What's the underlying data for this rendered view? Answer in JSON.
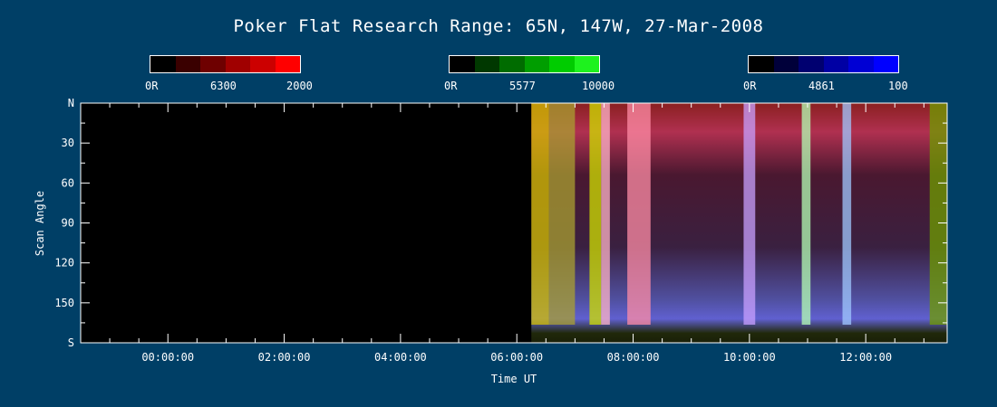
{
  "chart_data": {
    "type": "heatmap",
    "title": "Poker Flat Research Range: 65N, 147W, 27-Mar-2008",
    "xlabel": "Time UT",
    "ylabel": "Scan Angle",
    "x_range_hours": [
      -1.5,
      13.4
    ],
    "x_ticks": [
      {
        "hour": 0,
        "label": "00:00:00"
      },
      {
        "hour": 2,
        "label": "02:00:00"
      },
      {
        "hour": 4,
        "label": "04:00:00"
      },
      {
        "hour": 6,
        "label": "06:00:00"
      },
      {
        "hour": 8,
        "label": "08:00:00"
      },
      {
        "hour": 10,
        "label": "10:00:00"
      },
      {
        "hour": 12,
        "label": "12:00:00"
      }
    ],
    "y_range": [
      0,
      180
    ],
    "y_ticks": [
      {
        "value": 0,
        "label": "N"
      },
      {
        "value": 30,
        "label": "30"
      },
      {
        "value": 60,
        "label": "60"
      },
      {
        "value": 90,
        "label": "90"
      },
      {
        "value": 120,
        "label": "120"
      },
      {
        "value": 150,
        "label": "150"
      },
      {
        "value": 180,
        "label": "S"
      }
    ],
    "data_start_hour": 6.25,
    "colorbars": [
      {
        "channel": "red",
        "min_label": "0R",
        "wavelength_label": "6300",
        "max_label": "2000",
        "colors": [
          "#000000",
          "#3a0000",
          "#6e0000",
          "#a00000",
          "#cc0000",
          "#ff0000"
        ]
      },
      {
        "channel": "green",
        "min_label": "0R",
        "wavelength_label": "5577",
        "max_label": "10000",
        "colors": [
          "#000000",
          "#003800",
          "#006c00",
          "#009e00",
          "#00cc00",
          "#1ef21e"
        ]
      },
      {
        "channel": "blue",
        "min_label": "0R",
        "wavelength_label": "4861",
        "max_label": "100",
        "colors": [
          "#000000",
          "#00003a",
          "#000070",
          "#0000a4",
          "#0000d4",
          "#0000ff"
        ]
      }
    ],
    "bright_bands": [
      {
        "hour_start": 6.25,
        "hour_end": 6.55,
        "color": "#d4c000"
      },
      {
        "hour_start": 6.55,
        "hour_end": 7.0,
        "color": "#a9a030"
      },
      {
        "hour_start": 7.25,
        "hour_end": 7.45,
        "color": "#d0e000"
      },
      {
        "hour_start": 7.45,
        "hour_end": 7.6,
        "color": "#ffb4c8"
      },
      {
        "hour_start": 7.9,
        "hour_end": 8.3,
        "color": "#ff8ca6"
      },
      {
        "hour_start": 9.9,
        "hour_end": 10.1,
        "color": "#c8a0ff"
      },
      {
        "hour_start": 10.9,
        "hour_end": 11.05,
        "color": "#b4ffb4"
      },
      {
        "hour_start": 11.6,
        "hour_end": 11.75,
        "color": "#a0c8ff"
      },
      {
        "hour_start": 13.1,
        "hour_end": 13.4,
        "color": "#6f9e00"
      }
    ],
    "colors": {
      "background": "#003f66",
      "plot_background": "#000000",
      "axis": "#ffffff"
    }
  }
}
